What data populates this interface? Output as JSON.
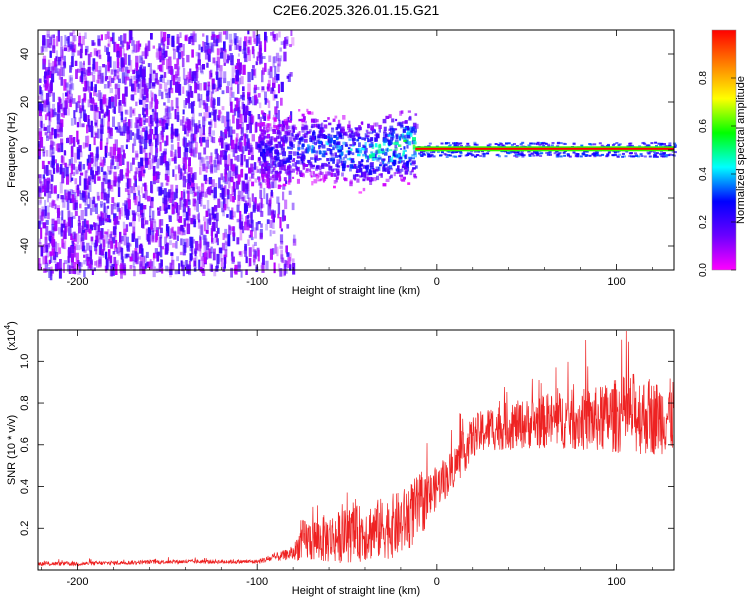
{
  "title": "C2E6.2025.326.01.15.G21",
  "chart_data": [
    {
      "type": "heatmap",
      "name": "spectrogram",
      "xlabel": "Height of straight line (km)",
      "ylabel": "Frequency (Hz)",
      "xlim": [
        -222,
        132
      ],
      "ylim": [
        -50,
        50
      ],
      "xticks": [
        -200,
        -100,
        0,
        100
      ],
      "xtick_labels": [
        "-200",
        "-100",
        "0",
        "100"
      ],
      "yticks": [
        -40,
        -20,
        0,
        20,
        40
      ],
      "ytick_labels": [
        "-40",
        "-20",
        "0",
        "20",
        "40"
      ],
      "colorbar": {
        "label": "Normalized spectral amplitude",
        "range": [
          0,
          1
        ],
        "ticks": [
          0.0,
          0.2,
          0.4,
          0.6,
          0.8
        ],
        "tick_labels": [
          "0.0",
          "0.2",
          "0.4",
          "0.6",
          "0.8"
        ],
        "colormap": [
          "#ff00ff",
          "#6a00ff",
          "#0000ff",
          "#00ffff",
          "#00ff00",
          "#ffff00",
          "#ff8000",
          "#ff0000"
        ]
      },
      "regions": [
        {
          "name": "broadband noise",
          "x": [
            -222,
            -80
          ],
          "f": [
            -50,
            50
          ],
          "amplitude": 0.15
        },
        {
          "name": "signal onset",
          "x": [
            -80,
            -12
          ],
          "f": [
            -8,
            8
          ],
          "amplitude": 0.45
        },
        {
          "name": "carrier line",
          "x": [
            -12,
            132
          ],
          "f": [
            0,
            1
          ],
          "amplitude": 1.0
        }
      ]
    },
    {
      "type": "line",
      "name": "snr",
      "xlabel": "Height of straight line (km)",
      "ylabel": "SNR (10 * v/v)",
      "scale_label": "(x10",
      "scale_exponent": "4",
      "scale_suffix": ")",
      "xlim": [
        -222,
        132
      ],
      "ylim": [
        0.0,
        1.15
      ],
      "xticks": [
        -200,
        -100,
        0,
        100
      ],
      "xtick_labels": [
        "-200",
        "-100",
        "0",
        "100"
      ],
      "yticks": [
        0.2,
        0.4,
        0.6,
        0.8,
        1.0
      ],
      "ytick_labels": [
        "0.2",
        "0.4",
        "0.6",
        "0.8",
        "1.0"
      ],
      "color": "#ee2222",
      "envelope": {
        "x": [
          -222,
          -200,
          -150,
          -100,
          -90,
          -80,
          -75,
          -60,
          -40,
          -20,
          -10,
          -5,
          0,
          5,
          10,
          15,
          20,
          30,
          50,
          70,
          90,
          100,
          110,
          120,
          132
        ],
        "mean": [
          0.03,
          0.03,
          0.04,
          0.04,
          0.06,
          0.08,
          0.14,
          0.15,
          0.18,
          0.22,
          0.3,
          0.34,
          0.4,
          0.44,
          0.5,
          0.56,
          0.64,
          0.68,
          0.7,
          0.72,
          0.72,
          0.74,
          0.75,
          0.73,
          0.74
        ],
        "spread": [
          0.01,
          0.01,
          0.01,
          0.01,
          0.02,
          0.03,
          0.1,
          0.12,
          0.14,
          0.16,
          0.16,
          0.12,
          0.1,
          0.1,
          0.1,
          0.1,
          0.1,
          0.11,
          0.12,
          0.14,
          0.16,
          0.18,
          0.2,
          0.18,
          0.18
        ]
      }
    }
  ]
}
